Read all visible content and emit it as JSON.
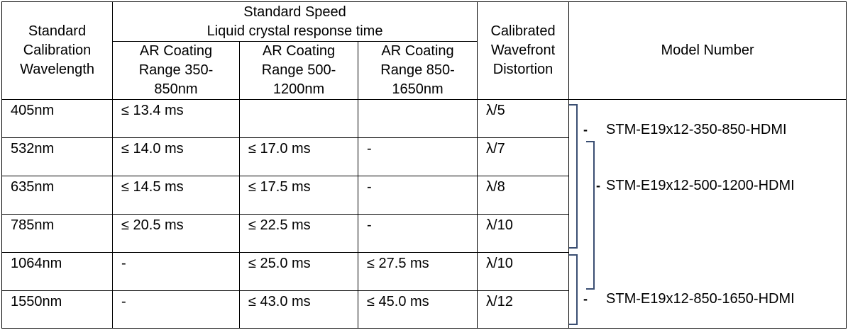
{
  "header": {
    "wavelength": [
      "Standard",
      "Calibration",
      "Wavelength"
    ],
    "speed_title": [
      "Standard Speed",
      "Liquid crystal response time"
    ],
    "ar_350": [
      "AR Coating",
      "Range 350-",
      "850nm"
    ],
    "ar_500": [
      "AR Coating",
      "Range 500-",
      "1200nm"
    ],
    "ar_850": [
      "AR Coating",
      "Range 850-",
      "1650nm"
    ],
    "distortion": [
      "Calibrated",
      "Wavefront",
      "Distortion"
    ],
    "model": "Model Number"
  },
  "rows": [
    {
      "wavelength": "405nm",
      "ar_350": "≤ 13.4 ms",
      "ar_500": "",
      "ar_850": "",
      "distortion": "λ/5"
    },
    {
      "wavelength": "532nm",
      "ar_350": "≤ 14.0 ms",
      "ar_500": "≤ 17.0 ms",
      "ar_850": "-",
      "distortion": "λ/7"
    },
    {
      "wavelength": "635nm",
      "ar_350": "≤ 14.5 ms",
      "ar_500": "≤ 17.5 ms",
      "ar_850": "-",
      "distortion": "λ/8"
    },
    {
      "wavelength": "785nm",
      "ar_350": "≤ 20.5 ms",
      "ar_500": "≤ 22.5 ms",
      "ar_850": "-",
      "distortion": "λ/10"
    },
    {
      "wavelength": "1064nm",
      "ar_350": "-",
      "ar_500": "≤ 25.0 ms",
      "ar_850": "≤ 27.5 ms",
      "distortion": "λ/10"
    },
    {
      "wavelength": "1550nm",
      "ar_350": "-",
      "ar_500": "≤ 43.0 ms",
      "ar_850": "≤ 45.0 ms",
      "distortion": "λ/12"
    }
  ],
  "models": {
    "dash": "-",
    "model_350": "STM-E19x12-350-850-HDMI",
    "model_500": "STM-E19x12-500-1200-HDMI",
    "model_850": "STM-E19x12-850-1650-HDMI"
  },
  "colors": {
    "bracket": "#3a4e72",
    "border": "#000000",
    "text": "#000000"
  }
}
